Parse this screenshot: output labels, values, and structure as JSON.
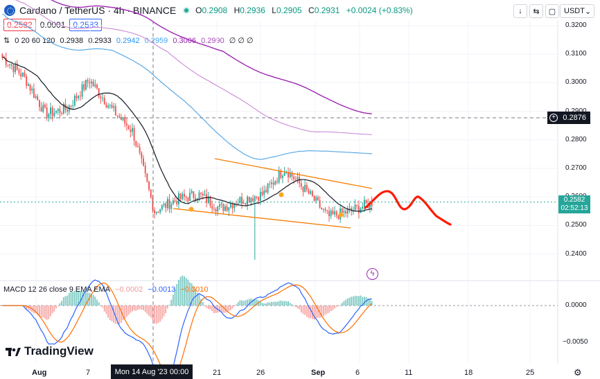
{
  "header": {
    "symbol_title": "Cardano / TetherUS · 4h · BINANCE",
    "open_key": "O",
    "open": "0.2908",
    "high_key": "H",
    "high": "0.2936",
    "low_key": "L",
    "low": "0.2905",
    "close_key": "C",
    "close": "0.2931",
    "change": "+0.0024 (+0.83%)",
    "currency": "USDT",
    "buttons": [
      "↓",
      "⇆",
      "▢"
    ]
  },
  "quote": {
    "sell": "0.2582",
    "spread": "0.0001",
    "buy": "0.2583"
  },
  "ma_legend": {
    "name": "0 20 60 120",
    "v1": "0.2938",
    "v2": "0.2933",
    "v3": "0.2942",
    "v4": "0.2959",
    "v5": "0.3006",
    "v6": "0.2990",
    "empties": "∅ ∅ ∅"
  },
  "macd_legend": {
    "name": "MACD 12 26 close 9 EMA EMA",
    "hist": "−0.0002",
    "macd": "−0.0013",
    "signal": "−0.0010"
  },
  "price_axis": [
    "0.3200",
    "0.3100",
    "0.3000",
    "0.2900",
    "0.2800",
    "0.2700",
    "0.2600",
    "0.2500",
    "0.2400"
  ],
  "macd_axis": [
    "0.0000",
    "−0.0050"
  ],
  "crosshair": {
    "price": "0.2876",
    "time": "Mon 14 Aug '23   00:00"
  },
  "current": {
    "price": "0.2582",
    "countdown": "02:52:13"
  },
  "time_axis": [
    "Aug",
    "7",
    "21",
    "26",
    "Sep",
    "6",
    "11",
    "18",
    "25"
  ],
  "brand": "TradingView",
  "colors": {
    "up": "#26a69a",
    "down": "#ef5350",
    "ma_black": "#131722",
    "ma_blue": "#5aa9e6",
    "ma_purple": "#9c27b0",
    "ma_pink": "#ce93d8",
    "channel": "#f57c00",
    "projection": "#ff1a00",
    "macd_line": "#2962ff",
    "signal_line": "#ff6d00"
  },
  "chart_data": {
    "type": "candlestick",
    "xlabel": "",
    "ylabel": "",
    "ylim": [
      0.235,
      0.3225
    ],
    "series": [
      {
        "name": "ADA/USDT 4h",
        "x": [
          "Aug",
          "7",
          "21",
          "26",
          "Sep",
          "6"
        ],
        "close_path": [
          0.309,
          0.302,
          0.289,
          0.291,
          0.301,
          0.291,
          0.283,
          0.255,
          0.259,
          0.261,
          0.256,
          0.259,
          0.261,
          0.27,
          0.262,
          0.253,
          0.255,
          0.258
        ]
      }
    ]
  }
}
